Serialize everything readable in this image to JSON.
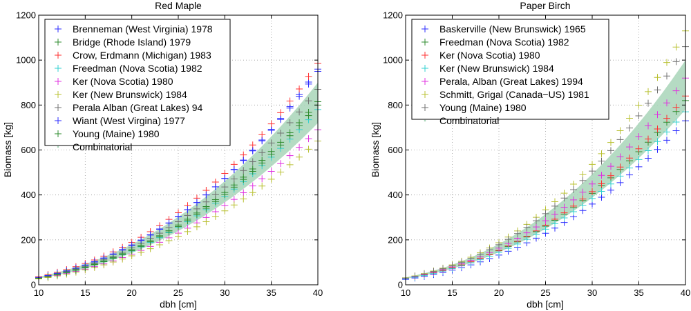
{
  "chart_data": [
    {
      "type": "scatter",
      "title": "Red Maple",
      "xlabel": "dbh [cm]",
      "ylabel": "Biomass [kg]",
      "xlim": [
        10,
        40
      ],
      "ylim": [
        0,
        1200
      ],
      "xticks": [
        10,
        15,
        20,
        25,
        30,
        35,
        40
      ],
      "yticks": [
        0,
        200,
        400,
        600,
        800,
        1000,
        1200
      ],
      "grid": true,
      "legend_position": "top-left",
      "x": [
        10,
        11,
        12,
        13,
        14,
        15,
        16,
        17,
        18,
        19,
        20,
        21,
        22,
        23,
        24,
        25,
        26,
        27,
        28,
        29,
        30,
        31,
        32,
        33,
        34,
        35,
        36,
        37,
        38,
        39,
        40
      ],
      "band": {
        "name": "Combinatorial",
        "color": "#a8d5b8",
        "lower_at_40": 720,
        "upper_at_40": 900,
        "lower_at_10": 28,
        "upper_at_10": 36
      },
      "series": [
        {
          "name": "Brenneman (West Virginia) 1978",
          "color": "#2b2bff",
          "marker": "plus",
          "y_at_10": 32,
          "y_at_40": 960
        },
        {
          "name": "Bridge (Rhode Island) 1979",
          "color": "#2e8b2e",
          "marker": "plus",
          "y_at_10": 30,
          "y_at_40": 815
        },
        {
          "name": "Crow, Erdmann (Michigan) 1983",
          "color": "#ff3030",
          "marker": "plus",
          "y_at_10": 36,
          "y_at_40": 985
        },
        {
          "name": "Freedman (Nova Scotia) 1982",
          "color": "#30d0d0",
          "marker": "plus",
          "y_at_10": 29,
          "y_at_40": 780
        },
        {
          "name": "Ker (Nova Scotia) 1980",
          "color": "#e030e0",
          "marker": "plus",
          "y_at_10": 27,
          "y_at_40": 690
        },
        {
          "name": "Ker (New Brunswick) 1984",
          "color": "#b8c030",
          "marker": "plus",
          "y_at_10": 26,
          "y_at_40": 640
        },
        {
          "name": "Perala Alban (Great Lakes) 94",
          "color": "#707070",
          "marker": "plus",
          "y_at_10": 31,
          "y_at_40": 870
        },
        {
          "name": "Wiant (West Virgina) 1977",
          "color": "#2b2bff",
          "marker": "plus",
          "y_at_10": 33,
          "y_at_40": 950
        },
        {
          "name": "Young (Maine) 1980",
          "color": "#2e8b2e",
          "marker": "plus",
          "y_at_10": 29,
          "y_at_40": 800
        },
        {
          "name": "Combinatorial",
          "color": "#a8d5b8",
          "marker": "dot"
        }
      ]
    },
    {
      "type": "scatter",
      "title": "Paper Birch",
      "xlabel": "dbh [cm]",
      "ylabel": "Biomass [kg]",
      "xlim": [
        10,
        40
      ],
      "ylim": [
        0,
        1200
      ],
      "xticks": [
        10,
        15,
        20,
        25,
        30,
        35,
        40
      ],
      "yticks": [
        0,
        200,
        400,
        600,
        800,
        1000,
        1200
      ],
      "grid": true,
      "legend_position": "top-left",
      "x": [
        10,
        11,
        12,
        13,
        14,
        15,
        16,
        17,
        18,
        19,
        20,
        21,
        22,
        23,
        24,
        25,
        26,
        27,
        28,
        29,
        30,
        31,
        32,
        33,
        34,
        35,
        36,
        37,
        38,
        39,
        40
      ],
      "band": {
        "name": "Combinatorial",
        "color": "#a8d5b8",
        "lower_at_40": 780,
        "upper_at_40": 1000,
        "lower_at_10": 27,
        "upper_at_10": 33
      },
      "series": [
        {
          "name": "Baskerville (New Brunswick) 1965",
          "color": "#2b2bff",
          "marker": "plus",
          "y_at_10": 24,
          "y_at_40": 730
        },
        {
          "name": "Freedman (Nova Scotia) 1982",
          "color": "#2e8b2e",
          "marker": "plus",
          "y_at_10": 28,
          "y_at_40": 820
        },
        {
          "name": "Ker (Nova Scotia) 1980",
          "color": "#ff3030",
          "marker": "plus",
          "y_at_10": 28,
          "y_at_40": 840
        },
        {
          "name": "Ker (New Brunswick) 1984",
          "color": "#30d0d0",
          "marker": "plus",
          "y_at_10": 27,
          "y_at_40": 770
        },
        {
          "name": "Perala, Alban (Great Lakes) 1994",
          "color": "#e030e0",
          "marker": "plus",
          "y_at_10": 29,
          "y_at_40": 920
        },
        {
          "name": "Schmitt, Grigal (Canada−US) 1981",
          "color": "#b8c030",
          "marker": "plus",
          "y_at_10": 31,
          "y_at_40": 1130
        },
        {
          "name": "Young (Maine) 1980",
          "color": "#707070",
          "marker": "plus",
          "y_at_10": 30,
          "y_at_40": 1060
        },
        {
          "name": "Combinatorial",
          "color": "#a8d5b8",
          "marker": "dot"
        }
      ]
    }
  ]
}
